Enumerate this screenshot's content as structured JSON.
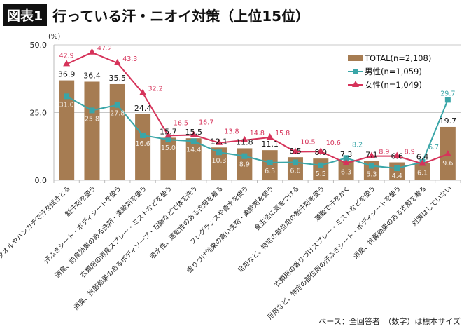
{
  "header": {
    "badge": "図表1",
    "title": "行っている汗・ニオイ対策（上位15位）"
  },
  "note": "ベース：全回答者　（数字）は標本サイズ",
  "chart_data": {
    "type": "bar+line",
    "ylabel": "(%)",
    "ylim": [
      0,
      50
    ],
    "yticks": [
      "0.0",
      "25.0",
      "50.0"
    ],
    "grid": true,
    "legend_position": "top-right",
    "categories": [
      "タオルやハンカチで汗を拭きとる",
      "制汗剤を使う",
      "汗ふきシート・ボディシートを使う",
      "消臭、防臭効果のある洗剤・柔軟剤を使う",
      "衣類用の消臭スプレー・ミストなどを使う",
      "消臭、抗菌効果のあるボディソープ・石鹸などで体を洗う",
      "吸水性、速乾性のある衣服を着る",
      "フレグランスや香水を使う",
      "香りづけ効果の高い洗剤・柔軟剤を使う",
      "食生活に気をつける",
      "足用など、特定の部位用の制汗剤を使う",
      "運動で汗をかく",
      "衣類用の香りづけスプレー・ミストなどを使う",
      "足用など、特定の部位用の汗ふきシート・ボディシートを使う",
      "消臭、抗菌効果のある衣服を着る",
      "対策はしていない"
    ],
    "series": [
      {
        "name": "TOTAL(n=2,108)",
        "type": "bar",
        "color": "#a67c52",
        "values": [
          36.9,
          36.4,
          35.5,
          24.4,
          15.7,
          15.5,
          12.1,
          11.8,
          11.1,
          8.5,
          8.0,
          7.3,
          7.1,
          6.6,
          6.4,
          19.7
        ]
      },
      {
        "name": "男性(n=1,059)",
        "type": "line",
        "marker": "square",
        "color": "#3aa6a8",
        "values": [
          31.0,
          25.8,
          27.8,
          16.6,
          15.0,
          14.4,
          10.3,
          8.9,
          6.5,
          6.6,
          5.5,
          8.2,
          5.3,
          4.4,
          6.7,
          29.7
        ]
      },
      {
        "name": "女性(n=1,049)",
        "type": "line",
        "marker": "triangle",
        "color": "#d6335a",
        "values": [
          42.9,
          47.2,
          43.3,
          32.2,
          16.5,
          16.7,
          13.8,
          14.8,
          15.8,
          10.5,
          10.6,
          6.3,
          8.9,
          8.9,
          6.1,
          9.6
        ]
      }
    ]
  }
}
